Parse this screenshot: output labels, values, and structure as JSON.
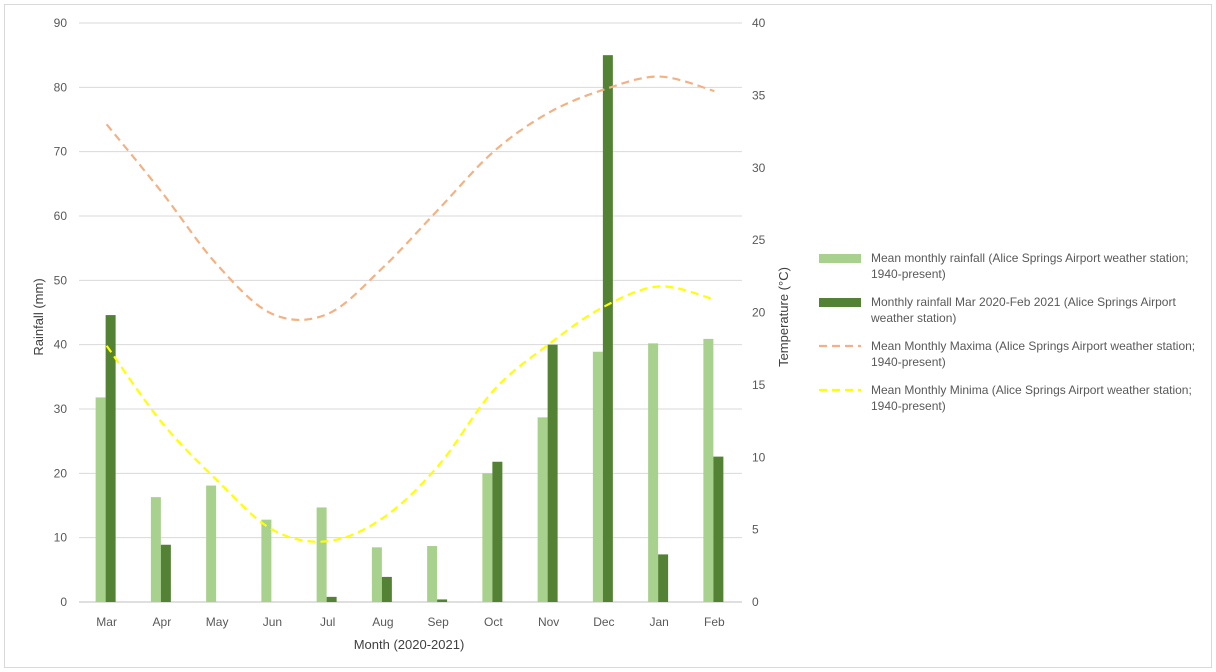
{
  "chart_data": {
    "type": "bar",
    "categories": [
      "Mar",
      "Apr",
      "May",
      "Jun",
      "Jul",
      "Aug",
      "Sep",
      "Oct",
      "Nov",
      "Dec",
      "Jan",
      "Feb"
    ],
    "xlabel": "Month (2020-2021)",
    "ylabel": "Rainfall (mm)",
    "y2label": "Temperature (°C)",
    "ylim": [
      0,
      90
    ],
    "y_ticks": [
      "0",
      "10",
      "20",
      "30",
      "40",
      "50",
      "60",
      "70",
      "80",
      "90"
    ],
    "y2lim": [
      0,
      40
    ],
    "y2_ticks": [
      "0",
      "5",
      "10",
      "15",
      "20",
      "25",
      "30",
      "35",
      "40"
    ],
    "grid": true,
    "legend_position": "right",
    "series": [
      {
        "name": "Mean monthly rainfall (Alice Springs Airport weather station; 1940-present)",
        "kind": "bar",
        "axis": "left",
        "color": "#a9d18e",
        "values": [
          31.8,
          16.3,
          18.1,
          12.8,
          14.7,
          8.5,
          8.7,
          20.0,
          28.7,
          38.9,
          40.2,
          40.9
        ]
      },
      {
        "name": "Monthly rainfall Mar 2020-Feb 2021 (Alice Springs Airport weather station)",
        "kind": "bar",
        "axis": "left",
        "color": "#548235",
        "values": [
          44.6,
          8.9,
          0.0,
          0.0,
          0.8,
          3.9,
          0.4,
          21.8,
          40.0,
          85.0,
          7.4,
          22.6
        ]
      },
      {
        "name": "Mean Monthly Maxima (Alice Springs Airport weather station; 1940-present)",
        "kind": "line",
        "axis": "right",
        "color": "#f4b183",
        "dash": "dashed",
        "values": [
          33.0,
          28.3,
          23.3,
          19.9,
          19.9,
          23.1,
          27.1,
          31.1,
          33.8,
          35.4,
          36.3,
          35.3
        ]
      },
      {
        "name": "Mean Monthly Minima (Alice Springs Airport weather station; 1940-present)",
        "kind": "line",
        "axis": "right",
        "color": "#ffff00",
        "dash": "dashed",
        "values": [
          17.7,
          12.4,
          8.4,
          5.0,
          4.2,
          5.8,
          9.4,
          14.6,
          17.8,
          20.4,
          21.8,
          20.9
        ]
      }
    ]
  }
}
